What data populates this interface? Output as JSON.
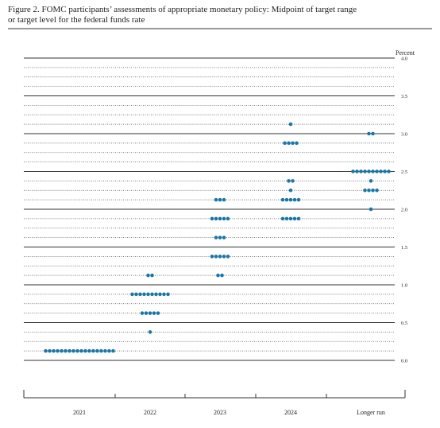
{
  "chart_data": {
    "type": "dot",
    "title": "Figure 2.  FOMC participants’ assessments of appropriate monetary policy:  Midpoint of target range",
    "subtitle": "or target level for the federal funds rate",
    "y_label": "Percent",
    "categories": [
      "2021",
      "2022",
      "2023",
      "2024",
      "Longer run"
    ],
    "color": "#1b75a6",
    "values": [
      [
        0.125,
        0.125,
        0.125,
        0.125,
        0.125,
        0.125,
        0.125,
        0.125,
        0.125,
        0.125,
        0.125,
        0.125,
        0.125,
        0.125,
        0.125,
        0.125,
        0.125,
        0.125
      ],
      [
        0.375,
        0.625,
        0.625,
        0.625,
        0.625,
        0.625,
        0.875,
        0.875,
        0.875,
        0.875,
        0.875,
        0.875,
        0.875,
        0.875,
        0.875,
        0.875,
        1.125,
        1.125
      ],
      [
        1.125,
        1.125,
        1.375,
        1.375,
        1.375,
        1.375,
        1.375,
        1.625,
        1.625,
        1.625,
        1.875,
        1.875,
        1.875,
        1.875,
        1.875,
        2.125,
        2.125,
        2.125
      ],
      [
        1.875,
        1.875,
        1.875,
        1.875,
        1.875,
        2.125,
        2.125,
        2.125,
        2.125,
        2.125,
        2.25,
        2.375,
        2.375,
        2.875,
        2.875,
        2.875,
        2.875,
        3.125
      ],
      [
        2,
        2.25,
        2.25,
        2.25,
        2.25,
        2.375,
        2.5,
        2.5,
        2.5,
        2.5,
        2.5,
        2.5,
        2.5,
        2.5,
        2.5,
        2.5,
        3,
        3
      ]
    ],
    "ylim": [
      0,
      4
    ],
    "yticks": [
      {
        "value": 0,
        "label": "0.0"
      },
      0.5,
      {
        "value": 1,
        "label": "1.0"
      },
      1.5,
      {
        "value": 2,
        "label": "2.0"
      },
      2.5,
      {
        "value": 3,
        "label": "3.0"
      },
      3.5,
      {
        "value": 4,
        "label": "4.0"
      }
    ],
    "grid": true
  }
}
